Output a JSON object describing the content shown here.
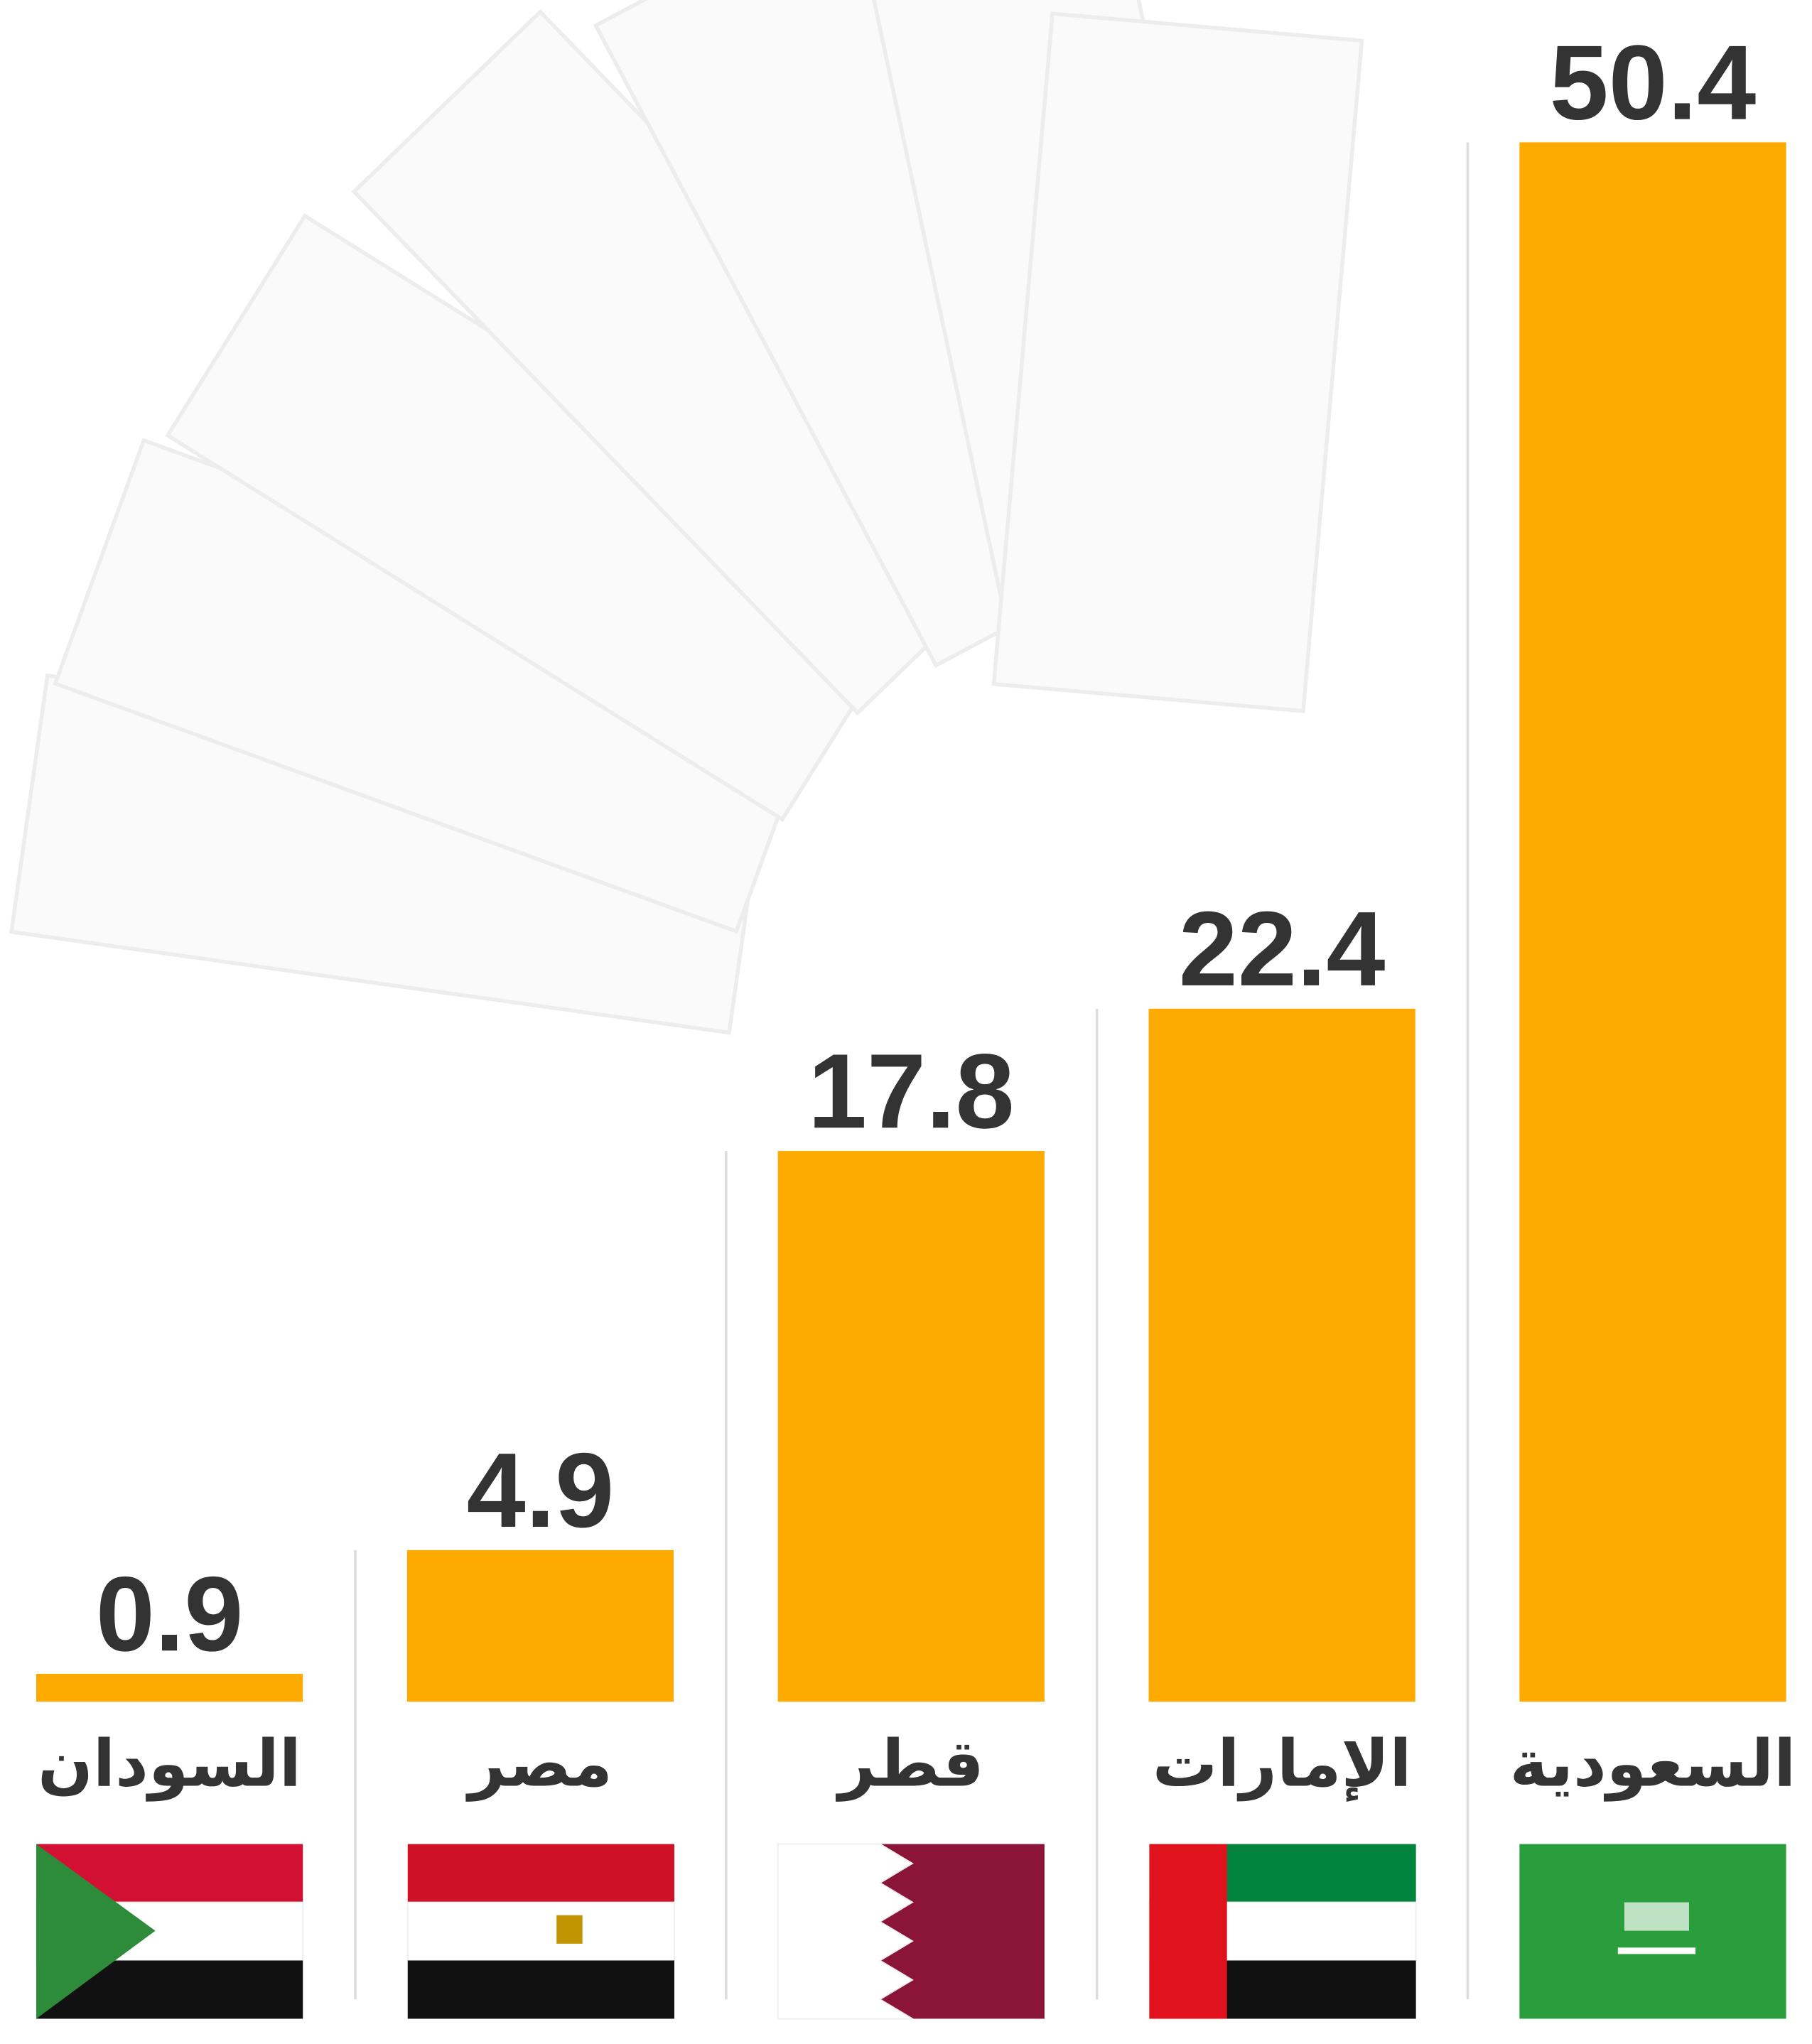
{
  "chart_data": {
    "type": "bar",
    "categories": [
      "السودان",
      "مصر",
      "قطر",
      "الإمارات",
      "السعودية"
    ],
    "values": [
      0.9,
      4.9,
      17.8,
      22.4,
      50.4
    ],
    "color": "#ffaa00",
    "ylim": [
      0,
      50.4
    ]
  }
}
